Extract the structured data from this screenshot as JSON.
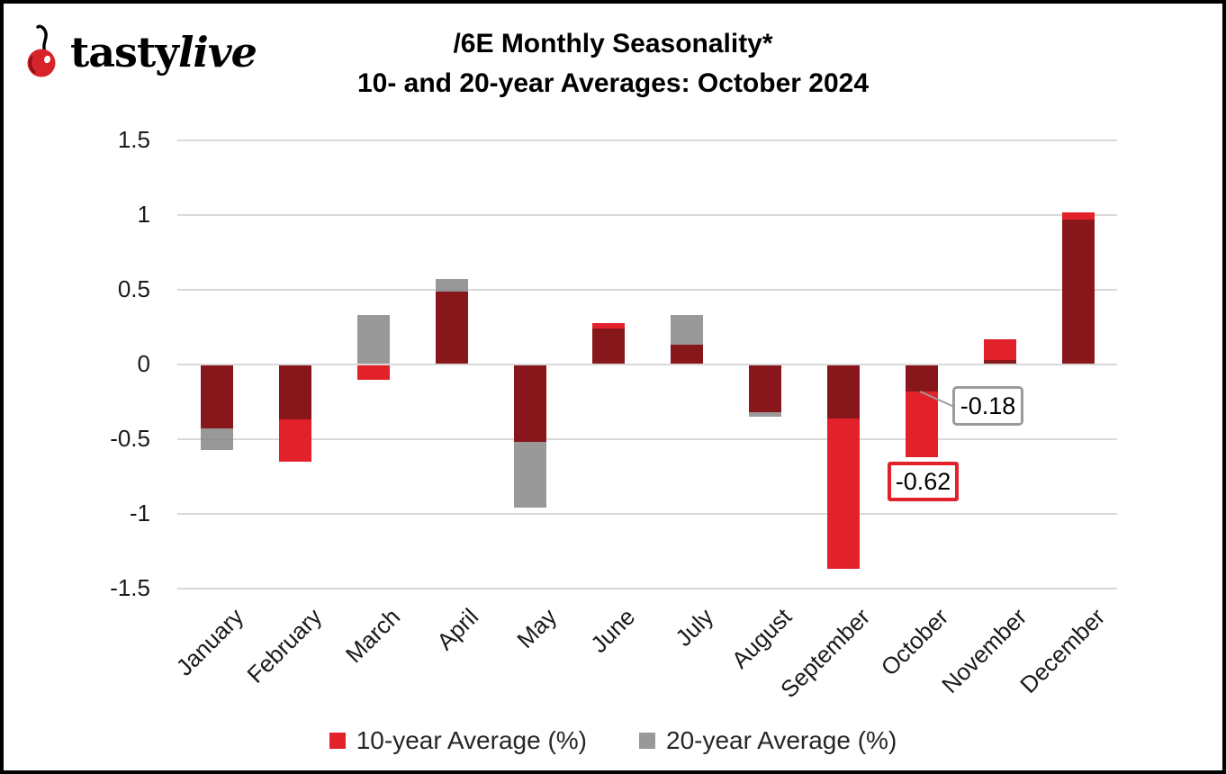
{
  "logo": {
    "brand_first": "tasty",
    "brand_second": "live",
    "icon": "cherry-icon"
  },
  "title": {
    "line1": "/6E Monthly Seasonality*",
    "line2": "10- and 20-year Averages: October 2024"
  },
  "chart_data": {
    "type": "bar",
    "title": "/6E Monthly Seasonality* 10- and 20-year Averages: October 2024",
    "categories": [
      "January",
      "February",
      "March",
      "April",
      "May",
      "June",
      "July",
      "August",
      "September",
      "October",
      "November",
      "December"
    ],
    "series": [
      {
        "name": "10-year Average (%)",
        "color": "#e2212b",
        "values": [
          -0.43,
          -0.65,
          -0.1,
          0.49,
          -0.52,
          0.28,
          0.13,
          -0.32,
          -1.37,
          -0.62,
          0.17,
          1.02
        ]
      },
      {
        "name": "20-year Average (%)",
        "color": "#999999",
        "values": [
          -0.57,
          -0.37,
          0.33,
          0.57,
          -0.96,
          0.24,
          0.33,
          -0.35,
          -0.36,
          -0.18,
          0.03,
          0.97
        ]
      }
    ],
    "overlap_color": "#87171b",
    "ylim": [
      -1.5,
      1.5
    ],
    "yticks": [
      1.5,
      1,
      0.5,
      0,
      -0.5,
      -1,
      -1.5
    ],
    "ytick_labels": [
      "1.5",
      "1",
      "0.5",
      "0",
      "-0.5",
      "-1",
      "-1.5"
    ],
    "grid": true,
    "gridline_color": "#d9d9d9",
    "legend_position": "bottom",
    "annotations": [
      {
        "text": "-0.18",
        "month": "October",
        "series": "20-year Average (%)",
        "value": -0.18,
        "box_style": "gray-border"
      },
      {
        "text": "-0.62",
        "month": "October",
        "series": "10-year Average (%)",
        "value": -0.62,
        "box_style": "red-border"
      }
    ]
  },
  "legend": {
    "items": [
      {
        "label": "10-year Average (%)",
        "color": "#e2212b"
      },
      {
        "label": "20-year Average (%)",
        "color": "#999999"
      }
    ]
  }
}
